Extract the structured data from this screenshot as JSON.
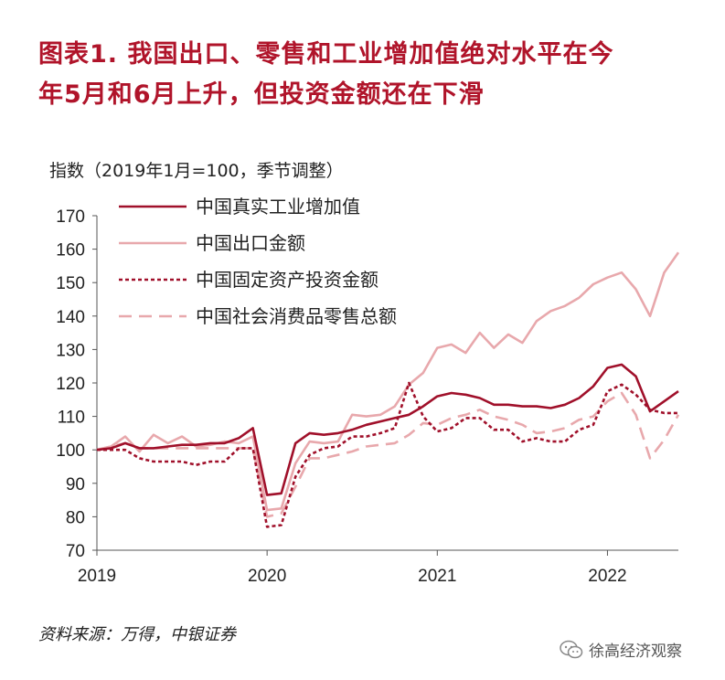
{
  "header": {
    "title_line1": "图表1.  我国出口、零售和工业增加值绝对水平在今",
    "title_line2": "年5月和6月上升，但投资金额还在下滑"
  },
  "footer": {
    "source": "资料来源：万得，中银证券",
    "watermark": "徐高经济观察"
  },
  "colors": {
    "industrial": "#a0102a",
    "exports": "#e8a8ac",
    "fai": "#a0102a",
    "retail": "#e8a8ac",
    "axis": "#555555"
  },
  "chart_data": {
    "type": "line",
    "title": "",
    "ylabel": "指数（2019年1月=100，季节调整）",
    "xlabel": "",
    "ylim": [
      70,
      170
    ],
    "yticks": [
      70,
      80,
      90,
      100,
      110,
      120,
      130,
      140,
      150,
      160,
      170
    ],
    "x_start": "2019-01",
    "x_end": "2022-06",
    "x_tick_labels": [
      "2019",
      "2020",
      "2021",
      "2022"
    ],
    "grid": false,
    "legend_position": "top-left",
    "x": [
      "2019-01",
      "2019-02",
      "2019-03",
      "2019-04",
      "2019-05",
      "2019-06",
      "2019-07",
      "2019-08",
      "2019-09",
      "2019-10",
      "2019-11",
      "2019-12",
      "2020-01",
      "2020-02",
      "2020-03",
      "2020-04",
      "2020-05",
      "2020-06",
      "2020-07",
      "2020-08",
      "2020-09",
      "2020-10",
      "2020-11",
      "2020-12",
      "2021-01",
      "2021-02",
      "2021-03",
      "2021-04",
      "2021-05",
      "2021-06",
      "2021-07",
      "2021-08",
      "2021-09",
      "2021-10",
      "2021-11",
      "2021-12",
      "2022-01",
      "2022-02",
      "2022-03",
      "2022-04",
      "2022-05",
      "2022-06"
    ],
    "series": [
      {
        "name": "中国真实工业增加值",
        "style": "solid",
        "color": "#a0102a",
        "values": [
          100,
          100.5,
          102,
          100.5,
          100.5,
          101,
          101.5,
          101.5,
          102,
          102,
          103.5,
          106.5,
          86.5,
          87,
          102,
          105,
          104.5,
          105,
          106,
          107.5,
          108.5,
          109.5,
          110.5,
          113,
          116,
          117,
          116.5,
          115.5,
          113.5,
          113.5,
          113,
          113,
          112.5,
          113.5,
          115.5,
          119,
          124.5,
          125.5,
          122,
          111.5,
          114.5,
          117.5
        ]
      },
      {
        "name": "中国出口金额",
        "style": "solid",
        "color": "#e8a8ac",
        "values": [
          100,
          101,
          104,
          99.5,
          104.5,
          102,
          104,
          101,
          101.5,
          102.5,
          102,
          104,
          82,
          82.5,
          96,
          102.5,
          102,
          102.5,
          110.5,
          110,
          110.5,
          113,
          119.5,
          123,
          130.5,
          131.5,
          129,
          135,
          130.5,
          134.5,
          132,
          138.5,
          141.5,
          143,
          145.5,
          149.5,
          151.5,
          153,
          148,
          140,
          153,
          159
        ]
      },
      {
        "name": "中国固定资产投资金额",
        "style": "dotted",
        "color": "#a0102a",
        "values": [
          100,
          100,
          100,
          97.5,
          96.5,
          96.5,
          96.5,
          95.5,
          96.5,
          96.5,
          100.5,
          100.5,
          77,
          77.5,
          92,
          98.5,
          100.5,
          101,
          104,
          104,
          105,
          106.5,
          120,
          110,
          105.5,
          106.5,
          109.5,
          109.5,
          106,
          106,
          102.5,
          103.5,
          102.5,
          102.5,
          106,
          107.5,
          117.5,
          119.5,
          116.5,
          112,
          111,
          111
        ]
      },
      {
        "name": "中国社会消费品零售总额",
        "style": "dashed",
        "color": "#e8a8ac",
        "values": [
          100,
          101,
          102,
          100.5,
          100.5,
          100.5,
          100.5,
          100.5,
          100.5,
          100.5,
          100.5,
          100.5,
          80,
          81,
          89,
          97.5,
          97.5,
          98.5,
          99.5,
          101,
          101.5,
          102,
          104.5,
          108,
          107.5,
          109.5,
          110.5,
          112,
          110,
          109,
          107.5,
          105,
          105.5,
          106.5,
          109,
          110,
          114.5,
          117,
          110.5,
          97.5,
          103,
          110.5
        ]
      }
    ]
  }
}
